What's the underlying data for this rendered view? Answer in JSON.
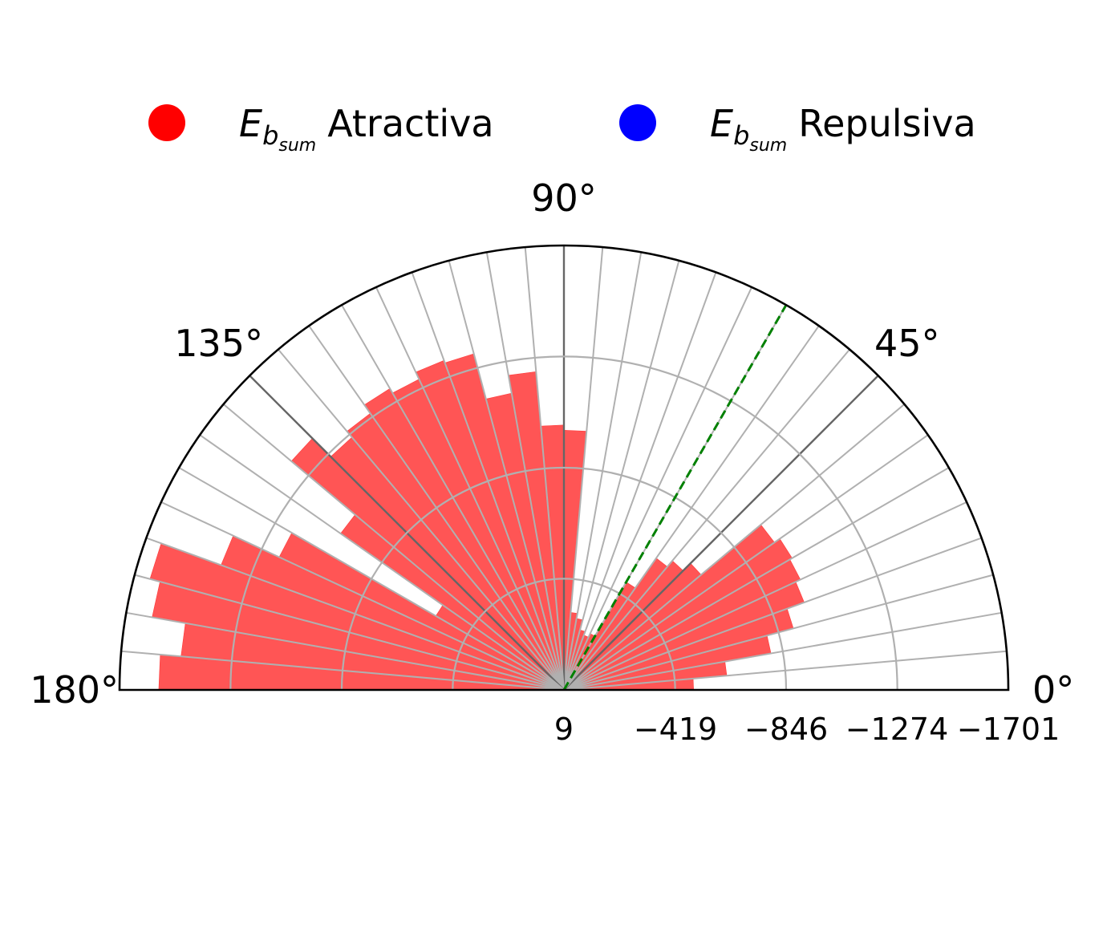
{
  "chart_data": {
    "type": "polar-bar",
    "legend": {
      "placement": "top",
      "entries": [
        {
          "symbol": "E",
          "subscript_1": "b",
          "subscript_2": "sum",
          "label": "Atractiva",
          "color": "#ff0000"
        },
        {
          "symbol": "E",
          "subscript_1": "b",
          "subscript_2": "sum",
          "label": "Repulsiva",
          "color": "#0000ff"
        }
      ]
    },
    "theta_range": [
      0,
      180
    ],
    "theta_tick_labels": [
      "0°",
      "45°",
      "90°",
      "135°",
      "180°"
    ],
    "theta_tick_values": [
      0,
      45,
      90,
      135,
      180
    ],
    "radial_axis": {
      "inverted": true,
      "value_at_center": 9,
      "value_at_edge": -1701,
      "tick_labels": [
        "9",
        "−419",
        "−846",
        "−1274",
        "−1701"
      ],
      "tick_values": [
        9,
        -419,
        -846,
        -1274,
        -1701
      ]
    },
    "bin_width_deg": 5,
    "series": [
      {
        "color": "#ff5555",
        "bins_start_deg": [
          0,
          5,
          10,
          15,
          20,
          25,
          30,
          35,
          40,
          45,
          50,
          55,
          60,
          65,
          70,
          75,
          80,
          85,
          90,
          95,
          100,
          105,
          110,
          115,
          120,
          125,
          130,
          135,
          140,
          145,
          150,
          155,
          160,
          165,
          170,
          175
        ],
        "values": [
          -490,
          -620,
          -800,
          -905,
          -975,
          -995,
          -1005,
          -980,
          -680,
          -640,
          -610,
          -470,
          -230,
          -215,
          -230,
          -270,
          -290,
          -990,
          -1010,
          -1220,
          -1150,
          -1330,
          -1340,
          -1310,
          -1330,
          -1290,
          -1260,
          -1360,
          -1040,
          -560,
          -1200,
          -1395,
          -1640,
          -1600,
          -1470,
          -1550
        ]
      }
    ],
    "reference_line": {
      "angle_deg": 60,
      "color": "#008000",
      "style": "dashed"
    },
    "grid": true
  }
}
